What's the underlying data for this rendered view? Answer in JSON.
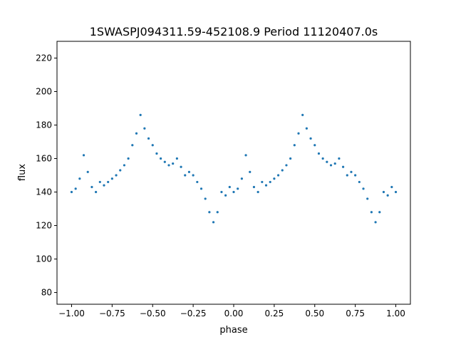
{
  "chart_data": {
    "type": "scatter",
    "title": "1SWASPJ094311.59-452108.9 Period 11120407.0s",
    "xlabel": "phase",
    "ylabel": "flux",
    "xlim": [
      -1.09,
      1.09
    ],
    "ylim": [
      73,
      230
    ],
    "xticks": [
      -1.0,
      -0.75,
      -0.5,
      -0.25,
      0.0,
      0.25,
      0.5,
      0.75,
      1.0
    ],
    "xtick_labels": [
      "−1.00",
      "−0.75",
      "−0.50",
      "−0.25",
      "0.00",
      "0.25",
      "0.50",
      "0.75",
      "1.00"
    ],
    "yticks": [
      80,
      100,
      120,
      140,
      160,
      180,
      200,
      220
    ],
    "ytick_labels": [
      "80",
      "100",
      "120",
      "140",
      "160",
      "180",
      "200",
      "220"
    ],
    "grid": false,
    "legend": "none",
    "point_color": "#1f77b4",
    "series": [
      {
        "x": [
          -1.0,
          -0.975,
          -0.95,
          -0.925,
          -0.9,
          -0.875,
          -0.85,
          -0.825,
          -0.8,
          -0.775,
          -0.75,
          -0.725,
          -0.7,
          -0.675,
          -0.65,
          -0.625,
          -0.6,
          -0.575,
          -0.55,
          -0.525,
          -0.5,
          -0.475,
          -0.45,
          -0.425,
          -0.4,
          -0.375,
          -0.35,
          -0.325,
          -0.3,
          -0.275,
          -0.25,
          -0.225,
          -0.2,
          -0.175,
          -0.15,
          -0.125,
          -0.1,
          -0.075,
          -0.05,
          -0.025,
          0.0,
          0.025,
          0.05,
          0.075,
          0.1,
          0.125,
          0.15,
          0.175,
          0.2,
          0.225,
          0.25,
          0.275,
          0.3,
          0.325,
          0.35,
          0.375,
          0.4,
          0.425,
          0.45,
          0.475,
          0.5,
          0.525,
          0.55,
          0.575,
          0.6,
          0.625,
          0.65,
          0.675,
          0.7,
          0.725,
          0.75,
          0.775,
          0.8,
          0.825,
          0.85,
          0.875,
          0.9,
          0.925,
          0.95,
          0.975,
          1.0
        ],
        "y": [
          140,
          142,
          148,
          162,
          152,
          143,
          140,
          146,
          144,
          146,
          148,
          150,
          153,
          156,
          160,
          168,
          175,
          186,
          178,
          172,
          168,
          163,
          160,
          158,
          156,
          157,
          160,
          155,
          150,
          152,
          150,
          146,
          142,
          136,
          128,
          122,
          128,
          140,
          138,
          143,
          140,
          142,
          148,
          162,
          152,
          143,
          140,
          146,
          144,
          146,
          148,
          150,
          153,
          156,
          160,
          168,
          175,
          186,
          178,
          172,
          168,
          163,
          160,
          158,
          156,
          157,
          160,
          155,
          150,
          152,
          150,
          146,
          142,
          136,
          128,
          122,
          128,
          140,
          138,
          143,
          140
        ]
      }
    ]
  }
}
